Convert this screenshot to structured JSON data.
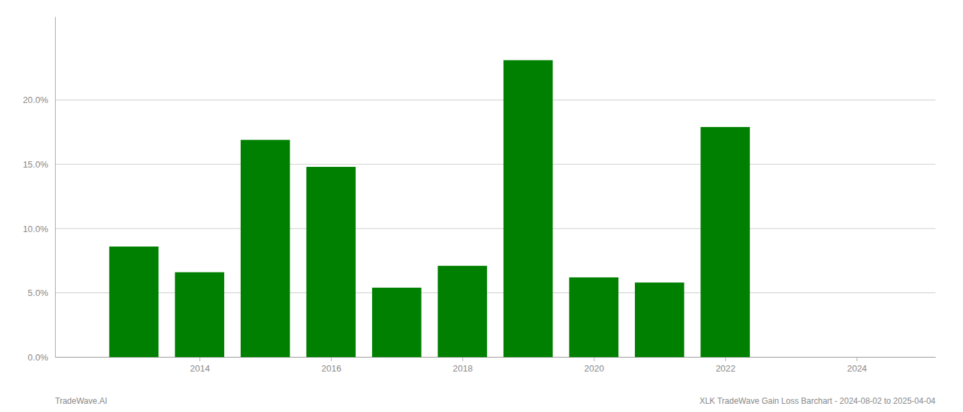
{
  "chart_data": {
    "type": "bar",
    "x": [
      2013,
      2014,
      2015,
      2016,
      2017,
      2018,
      2019,
      2020,
      2021,
      2022
    ],
    "values": [
      0.086,
      0.066,
      0.169,
      0.148,
      0.054,
      0.071,
      0.231,
      0.062,
      0.058,
      0.179
    ],
    "color": "#008000",
    "xlim": [
      2011.8,
      2025.2
    ],
    "xticks": [
      2014,
      2016,
      2018,
      2020,
      2022,
      2024
    ],
    "ylim": [
      0,
      0.265
    ],
    "yticks": [
      {
        "value": 0,
        "label": "0.0%"
      },
      {
        "value": 0.05,
        "label": "5.0%"
      },
      {
        "value": 0.1,
        "label": "10.0%"
      },
      {
        "value": 0.15,
        "label": "15.0%"
      },
      {
        "value": 0.2,
        "label": "20.0%"
      }
    ],
    "grid": true,
    "annotations": [
      "TradeWave.AI",
      "XLK TradeWave Gain Loss Barchart - 2024-08-02 to 2025-04-04"
    ]
  }
}
